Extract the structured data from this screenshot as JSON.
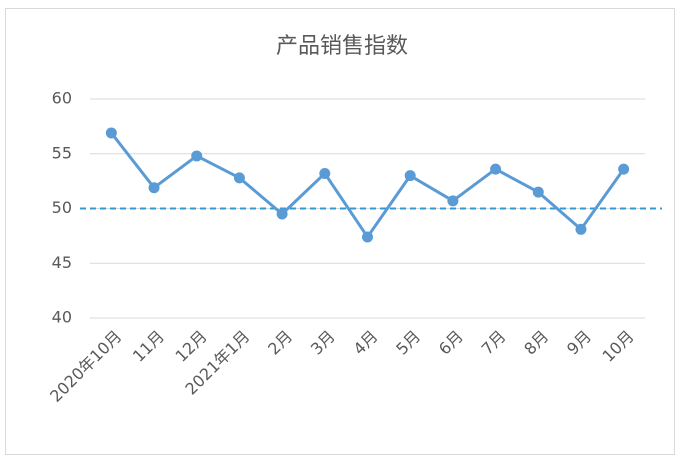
{
  "chart_data": {
    "type": "line",
    "title": "产品销售指数",
    "categories": [
      "2020年10月",
      "11月",
      "12月",
      "2021年1月",
      "2月",
      "3月",
      "4月",
      "5月",
      "6月",
      "7月",
      "8月",
      "9月",
      "10月"
    ],
    "series": [
      {
        "name": "产品销售指数",
        "color": "#5b9bd5",
        "values": [
          56.9,
          51.9,
          54.8,
          52.8,
          49.5,
          53.2,
          47.4,
          53.0,
          50.7,
          53.6,
          51.5,
          48.1,
          53.6
        ]
      }
    ],
    "reference_line": 50,
    "reference_color": "#2e9bd6",
    "ylim": [
      40,
      60
    ],
    "yticks": [
      40,
      45,
      50,
      55,
      60
    ],
    "grid": true
  }
}
